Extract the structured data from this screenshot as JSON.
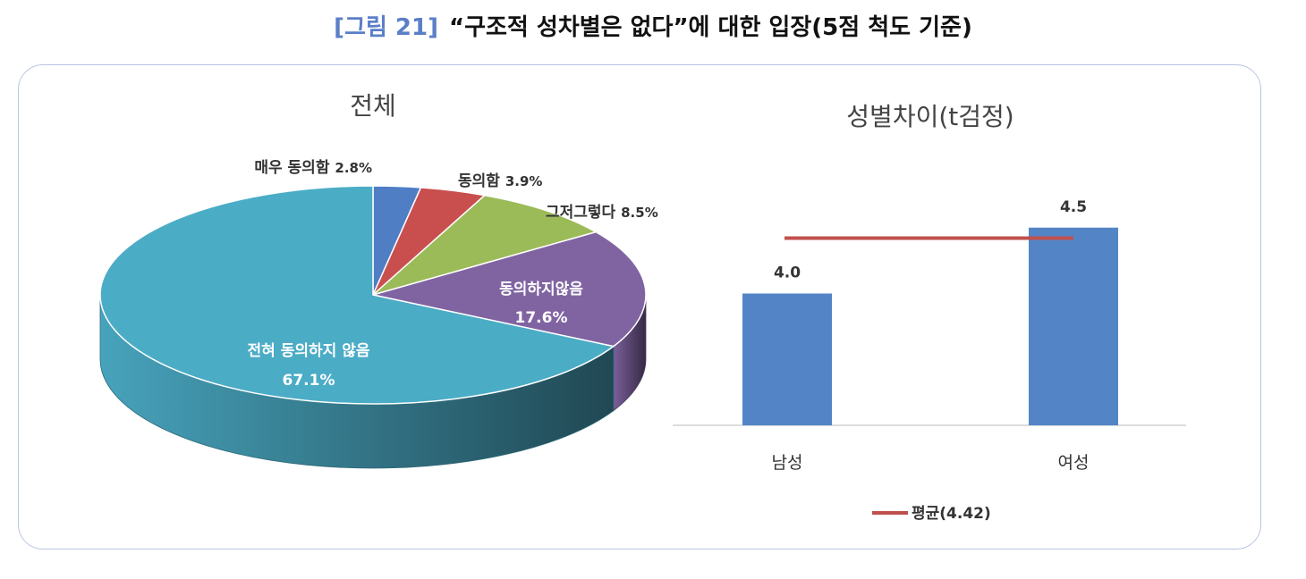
{
  "figure": {
    "number": "[그림 21]",
    "title": "“구조적 성차별은 없다”에 대한 입장(5점 척도 기준)"
  },
  "colors": {
    "border": "#b9c4e6",
    "bar": "#5385c6",
    "mean_line": "#c0504d"
  },
  "chart_data": [
    {
      "type": "pie",
      "title": "전체",
      "slices": [
        {
          "label": "매우 동의함",
          "value": 2.8,
          "display": "2.8%",
          "color": "#4f7ec4"
        },
        {
          "label": "동의함",
          "value": 3.9,
          "display": "3.9%",
          "color": "#c94f4f"
        },
        {
          "label": "그저그렇다",
          "value": 8.5,
          "display": "8.5%",
          "color": "#9bbb59"
        },
        {
          "label": "동의하지않음",
          "value": 17.6,
          "display": "17.6%",
          "color": "#8064a2"
        },
        {
          "label": "전혀 동의하지 않음",
          "value": 67.1,
          "display": "67.1%",
          "color": "#4bacc6"
        }
      ]
    },
    {
      "type": "bar",
      "title": "성별차이(t검정)",
      "categories": [
        "남성",
        "여성"
      ],
      "values": [
        4.0,
        4.5
      ],
      "value_labels": [
        "4.0",
        "4.5"
      ],
      "reference_line": {
        "label": "평균(4.42)",
        "value": 4.42
      },
      "ylim": [
        3.0,
        4.6
      ]
    }
  ]
}
